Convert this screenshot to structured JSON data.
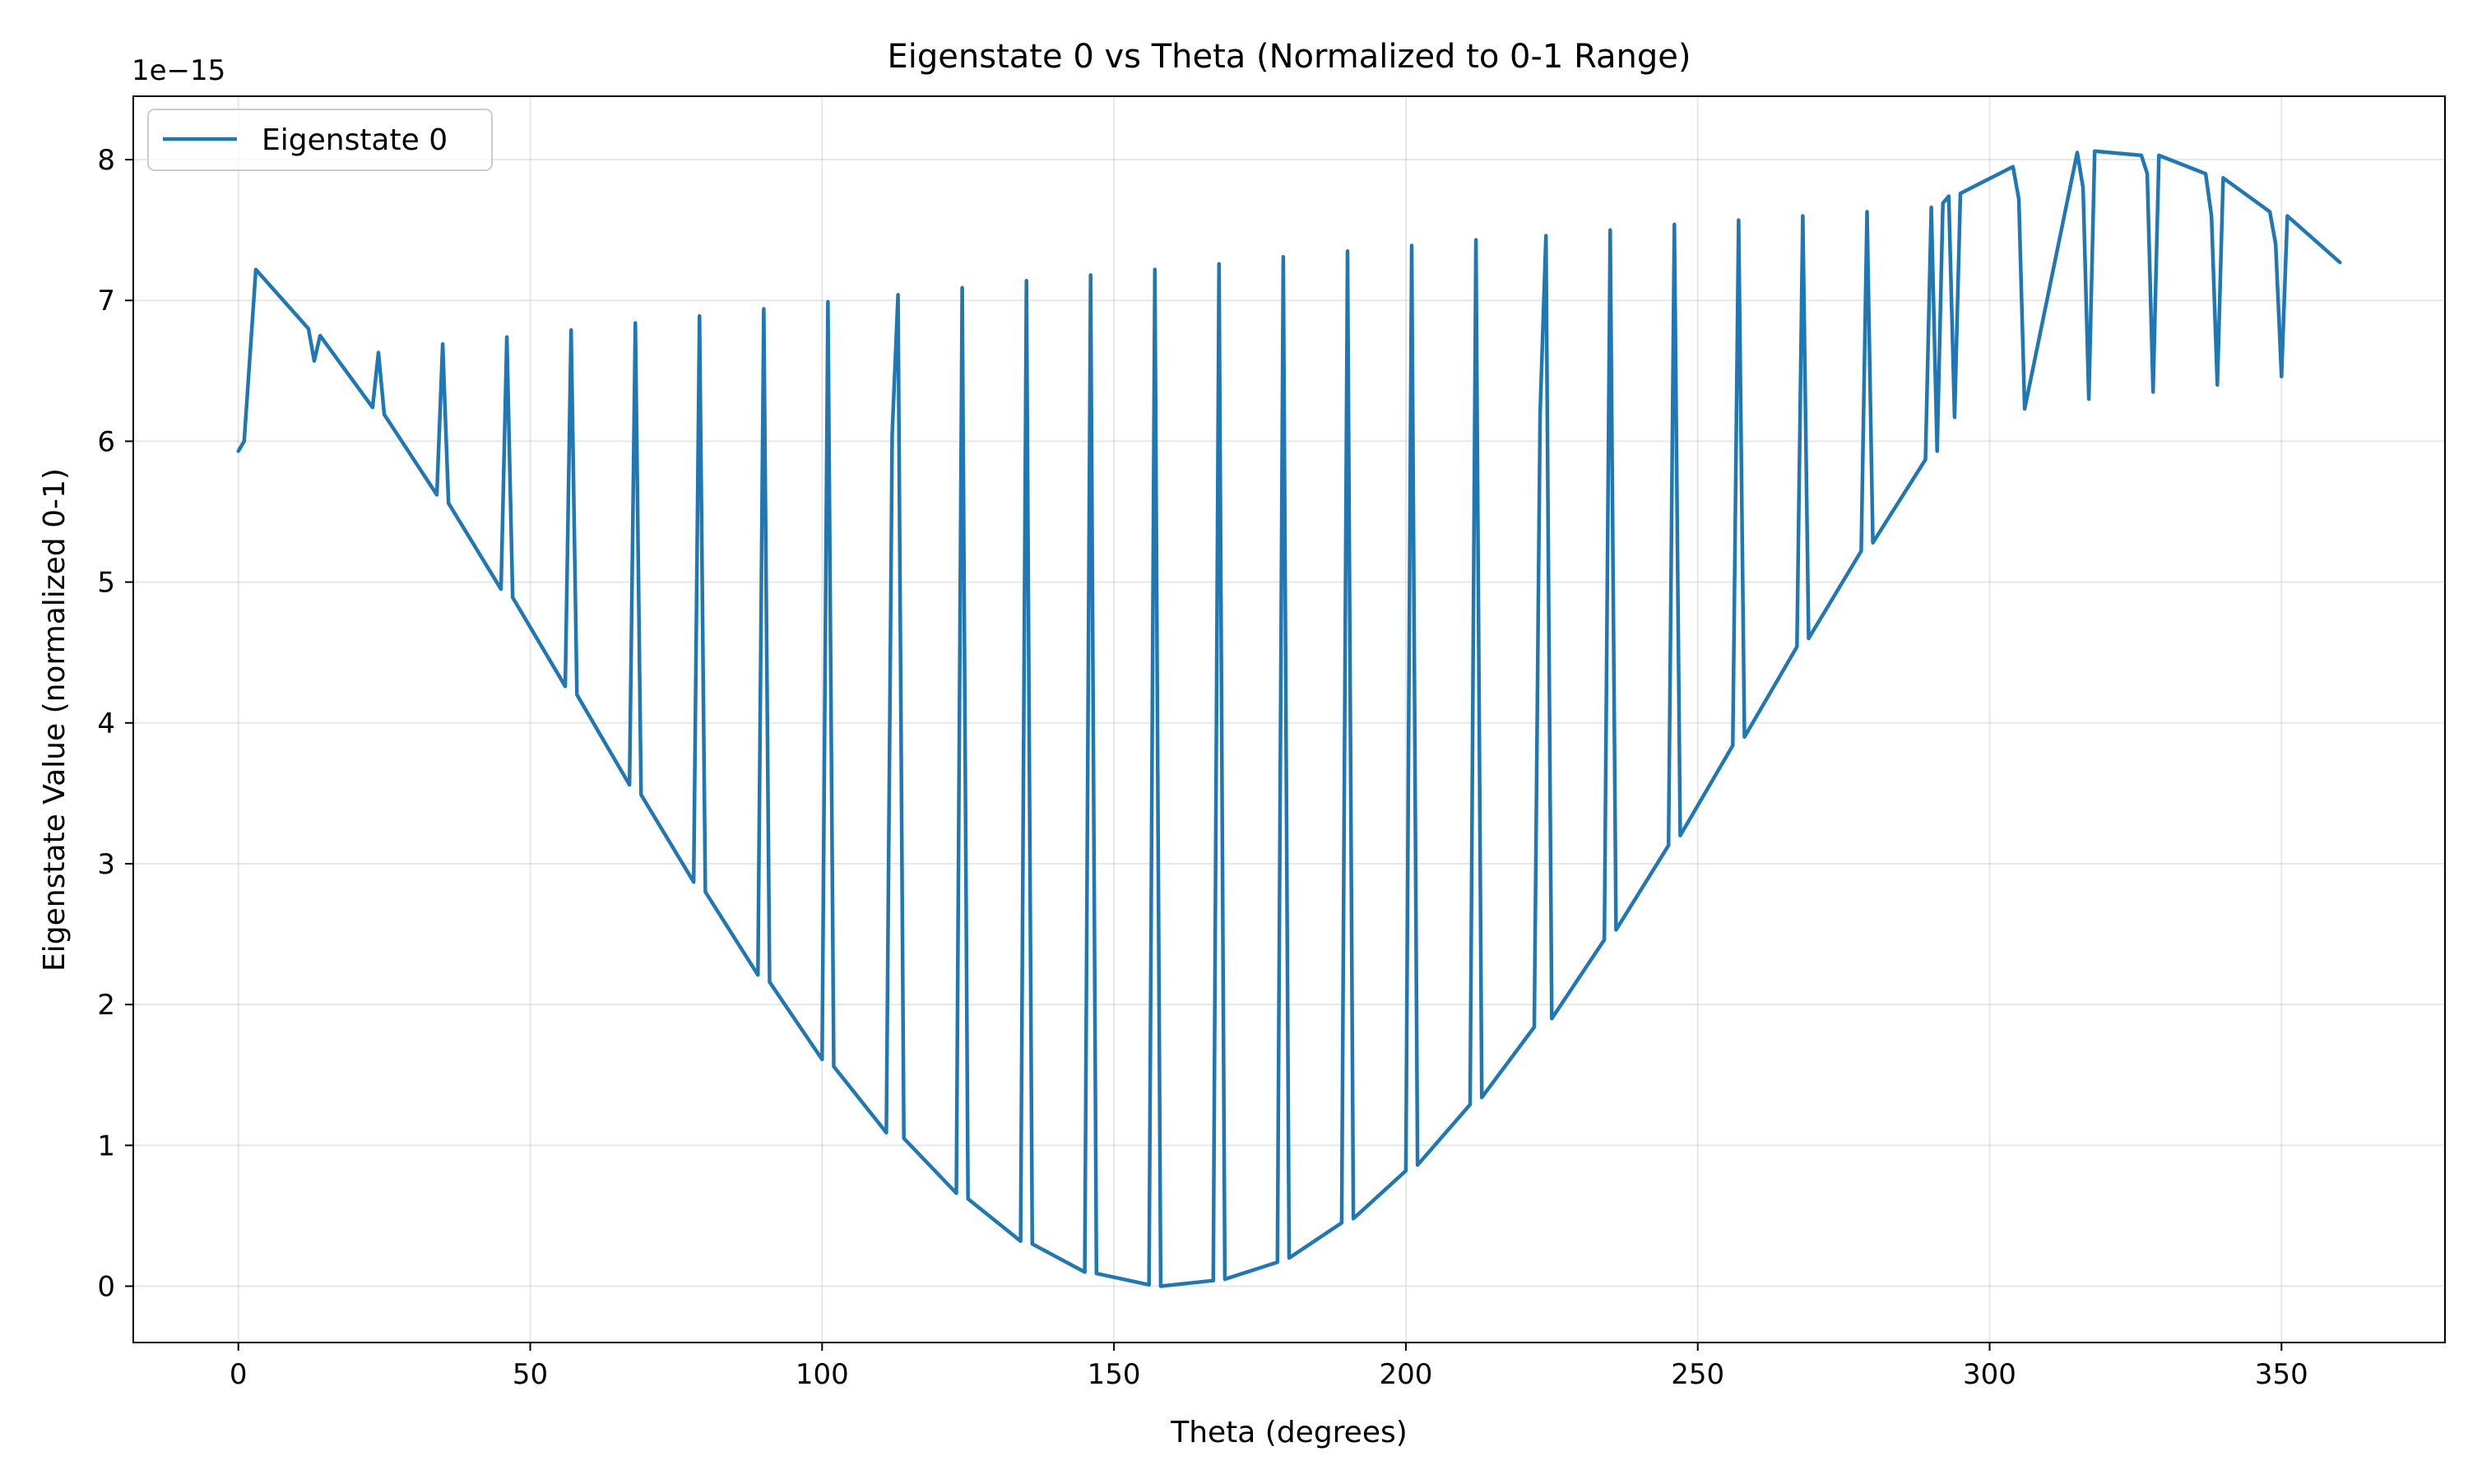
{
  "chart_data": {
    "type": "line",
    "title": "Eigenstate 0 vs Theta (Normalized to 0-1 Range)",
    "xlabel": "Theta (degrees)",
    "ylabel": "Eigenstate Value (normalized 0-1)",
    "y_offset_label": "1e−15",
    "xlim": [
      -18,
      378
    ],
    "ylim": [
      -0.4,
      8.45
    ],
    "x_ticks": [
      0,
      50,
      100,
      150,
      200,
      250,
      300,
      350
    ],
    "y_ticks": [
      0,
      1,
      2,
      3,
      4,
      5,
      6,
      7,
      8
    ],
    "x_tick_labels": [
      "0",
      "50",
      "100",
      "150",
      "200",
      "250",
      "300",
      "350"
    ],
    "y_tick_labels": [
      "0",
      "1",
      "2",
      "3",
      "4",
      "5",
      "6",
      "7",
      "8"
    ],
    "grid": true,
    "legend_position": "upper-left",
    "series": [
      {
        "name": "Eigenstate 0",
        "color": "#1f77b4",
        "x": [
          0,
          1,
          3,
          12,
          13,
          14,
          23,
          24,
          25,
          34,
          35,
          36,
          45,
          46,
          47,
          56,
          57,
          58,
          67,
          68,
          69,
          78,
          79,
          80,
          89,
          90,
          91,
          100,
          101,
          102,
          111,
          112,
          113,
          114,
          123,
          124,
          125,
          134,
          135,
          136,
          145,
          146,
          147,
          156,
          157,
          158,
          167,
          168,
          169,
          178,
          179,
          180,
          189,
          190,
          191,
          200,
          201,
          202,
          211,
          212,
          213,
          222,
          223,
          224,
          225,
          234,
          235,
          236,
          245,
          246,
          247,
          256,
          257,
          258,
          267,
          268,
          269,
          278,
          279,
          280,
          289,
          290,
          291,
          292,
          293,
          294,
          295,
          304,
          305,
          306,
          315,
          316,
          317,
          318,
          326,
          327,
          328,
          329,
          337,
          338,
          339,
          340,
          348,
          349,
          350,
          351,
          360
        ],
        "y": [
          5.93,
          6.0,
          7.22,
          6.8,
          6.57,
          6.75,
          6.24,
          6.63,
          6.19,
          5.62,
          6.69,
          5.56,
          4.95,
          6.74,
          4.89,
          4.26,
          6.79,
          4.2,
          3.56,
          6.84,
          3.49,
          2.87,
          6.89,
          2.8,
          2.21,
          6.94,
          2.16,
          1.61,
          6.99,
          1.56,
          1.09,
          6.05,
          7.04,
          1.05,
          0.66,
          7.09,
          0.62,
          0.32,
          7.14,
          0.3,
          0.1,
          7.18,
          0.09,
          0.01,
          7.22,
          0.0,
          0.04,
          7.26,
          0.05,
          0.17,
          7.31,
          0.2,
          0.45,
          7.35,
          0.48,
          0.82,
          7.39,
          0.86,
          1.29,
          7.43,
          1.34,
          1.84,
          6.2,
          7.46,
          1.9,
          2.46,
          7.5,
          2.53,
          3.13,
          7.54,
          3.2,
          3.84,
          7.57,
          3.9,
          4.54,
          7.6,
          4.6,
          5.22,
          7.63,
          5.28,
          5.87,
          7.66,
          5.93,
          7.69,
          7.74,
          6.17,
          7.76,
          7.95,
          7.72,
          6.23,
          8.05,
          7.8,
          6.3,
          8.06,
          8.03,
          7.9,
          6.35,
          8.03,
          7.9,
          7.6,
          6.4,
          7.87,
          7.63,
          7.4,
          6.46,
          7.6,
          7.27
        ]
      }
    ]
  }
}
